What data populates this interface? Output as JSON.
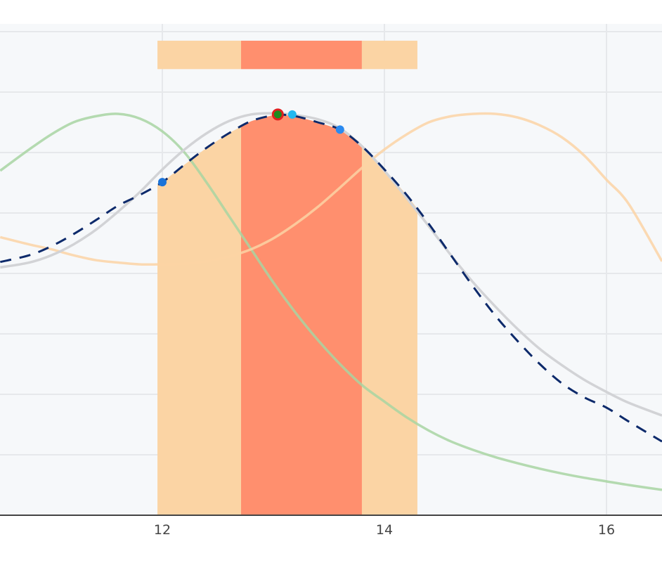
{
  "chart_data": {
    "type": "line",
    "title": "",
    "xlabel": "",
    "ylabel": "",
    "x_ticks": [
      12,
      14,
      16
    ],
    "x_tick_labels": [
      "12",
      "14",
      "16"
    ],
    "xlim": [
      10.54,
      16.5
    ],
    "ylim": [
      0,
      8.2
    ],
    "y_gridlines": [
      1,
      2,
      3,
      4,
      5,
      6,
      7,
      8
    ],
    "grid": true,
    "legend": null,
    "background": "#f6f8fa",
    "bands": [
      {
        "name": "outer-interval",
        "x0": 11.956,
        "x1": 14.297,
        "color": "#fbd4a4",
        "fill_under": "predicted"
      },
      {
        "name": "inner-interval",
        "x0": 12.709,
        "x1": 13.797,
        "color": "#ff8f6e",
        "fill_under": "predicted"
      }
    ],
    "interval_bar": {
      "y0": 7.38,
      "y1": 7.85,
      "segments": [
        {
          "x0": 11.956,
          "x1": 12.709,
          "color": "#fbd4a4"
        },
        {
          "x0": 12.709,
          "x1": 13.797,
          "color": "#ff8f6e"
        },
        {
          "x0": 13.797,
          "x1": 14.297,
          "color": "#fbd4a4"
        }
      ]
    },
    "series": [
      {
        "name": "green",
        "color": "#a8d5a2",
        "style": "solid",
        "x": [
          10.54,
          10.8,
          11.0,
          11.2,
          11.4,
          11.6,
          11.8,
          12.0,
          12.2,
          12.4,
          12.6,
          12.8,
          13.0,
          13.2,
          13.4,
          13.6,
          13.8,
          14.0,
          14.2,
          14.4,
          14.6,
          14.8,
          15.0,
          15.2,
          15.4,
          15.6,
          15.8,
          16.0,
          16.2,
          16.5
        ],
        "y": [
          5.7,
          6.05,
          6.3,
          6.5,
          6.6,
          6.64,
          6.56,
          6.35,
          6.0,
          5.5,
          4.95,
          4.4,
          3.85,
          3.35,
          2.9,
          2.5,
          2.15,
          1.88,
          1.62,
          1.4,
          1.22,
          1.08,
          0.96,
          0.86,
          0.77,
          0.69,
          0.62,
          0.56,
          0.5,
          0.42
        ]
      },
      {
        "name": "orange",
        "color": "#fcd3a4",
        "style": "solid",
        "x": [
          10.54,
          10.8,
          11.0,
          11.2,
          11.4,
          11.6,
          11.8,
          12.0,
          12.2,
          12.4,
          12.6,
          12.8,
          13.0,
          13.2,
          13.4,
          13.6,
          13.8,
          14.0,
          14.2,
          14.4,
          14.6,
          14.8,
          15.0,
          15.2,
          15.4,
          15.6,
          15.8,
          16.0,
          16.2,
          16.5
        ],
        "y": [
          4.6,
          4.48,
          4.4,
          4.3,
          4.22,
          4.18,
          4.15,
          4.15,
          4.16,
          4.2,
          4.28,
          4.4,
          4.58,
          4.82,
          5.1,
          5.42,
          5.75,
          6.05,
          6.3,
          6.5,
          6.6,
          6.64,
          6.64,
          6.58,
          6.45,
          6.25,
          5.95,
          5.55,
          5.15,
          4.2
        ]
      },
      {
        "name": "reference",
        "color": "#d2d3d6",
        "style": "solid",
        "x": [
          10.54,
          10.8,
          11.0,
          11.2,
          11.4,
          11.6,
          11.8,
          12.0,
          12.2,
          12.4,
          12.6,
          12.8,
          13.0,
          13.2,
          13.4,
          13.6,
          13.8,
          14.0,
          14.2,
          14.4,
          14.6,
          14.8,
          15.0,
          15.2,
          15.4,
          15.6,
          15.8,
          16.0,
          16.2,
          16.5
        ],
        "y": [
          4.1,
          4.18,
          4.3,
          4.48,
          4.72,
          5.02,
          5.35,
          5.72,
          6.05,
          6.32,
          6.52,
          6.63,
          6.65,
          6.62,
          6.55,
          6.4,
          6.1,
          5.7,
          5.25,
          4.78,
          4.3,
          3.85,
          3.45,
          3.08,
          2.75,
          2.48,
          2.24,
          2.04,
          1.86,
          1.65
        ]
      },
      {
        "name": "predicted",
        "color": "#0d2a6b",
        "style": "dashed",
        "x": [
          10.54,
          10.8,
          11.0,
          11.2,
          11.4,
          11.6,
          11.8,
          12.0,
          12.2,
          12.4,
          12.6,
          12.8,
          13.0,
          13.04,
          13.2,
          13.4,
          13.6,
          13.8,
          14.0,
          14.2,
          14.4,
          14.6,
          14.8,
          15.0,
          15.2,
          15.4,
          15.6,
          15.8,
          16.0,
          16.2,
          16.5
        ],
        "y": [
          4.19,
          4.3,
          4.45,
          4.65,
          4.88,
          5.12,
          5.3,
          5.51,
          5.8,
          6.08,
          6.32,
          6.52,
          6.62,
          6.63,
          6.6,
          6.5,
          6.38,
          6.1,
          5.72,
          5.3,
          4.82,
          4.3,
          3.78,
          3.3,
          2.88,
          2.5,
          2.18,
          1.95,
          1.78,
          1.55,
          1.22
        ]
      }
    ],
    "markers": [
      {
        "name": "point-12",
        "x": 12.0,
        "y": 5.51,
        "color": "#1a73d9",
        "radius": 6
      },
      {
        "name": "peak",
        "x": 13.04,
        "y": 6.63,
        "color": "#1e8b1e",
        "stroke": "#e02020",
        "radius": 7
      },
      {
        "name": "point-13.17",
        "x": 13.17,
        "y": 6.63,
        "color": "#22b8f0",
        "radius": 6
      },
      {
        "name": "point-13.6",
        "x": 13.6,
        "y": 6.38,
        "color": "#2a8af0",
        "radius": 6
      }
    ]
  }
}
